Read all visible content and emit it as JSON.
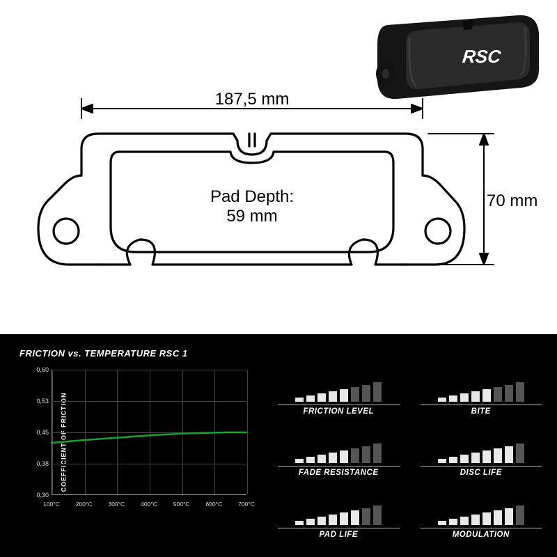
{
  "pad3d": {
    "logo_text": "RSC",
    "body_color": "#1b1b1b",
    "face_color": "#2f2f2f",
    "highlight": "#444444"
  },
  "drawing": {
    "width_label": "187,5 mm",
    "height_label": "70 mm",
    "depth_label_line1": "Pad Depth:",
    "depth_label_line2": "59 mm",
    "stroke_color": "#000000",
    "text_color": "#000000",
    "font_size_pt": 22
  },
  "chart": {
    "title": "FRICTION vs. TEMPERATURE RSC 1",
    "ylabel": "COEFFICIENT OF FRICTION",
    "ylim": [
      0.3,
      0.6
    ],
    "yticks": [
      "0,30",
      "0,38",
      "0,45",
      "0,53",
      "0,60"
    ],
    "xticks": [
      "100°C",
      "200°C",
      "300°C",
      "400°C",
      "500°C",
      "600°C",
      "700°C"
    ],
    "line_color": "#17a52d",
    "line_width": 2.5,
    "grid_color": "#444444",
    "axis_color": "#888888",
    "background": "#000000",
    "line_points": [
      [
        0,
        0.425
      ],
      [
        50,
        0.432
      ],
      [
        100,
        0.438
      ],
      [
        150,
        0.444
      ],
      [
        200,
        0.448
      ],
      [
        250,
        0.45
      ],
      [
        280,
        0.45
      ]
    ]
  },
  "meters": {
    "bar_count": 8,
    "bar_heights": [
      6,
      9,
      12,
      15,
      18,
      21,
      24,
      28
    ],
    "on_color": "#e8e8e8",
    "off_color": "#555555",
    "items": [
      {
        "label": "FRICTION LEVEL",
        "value": 5
      },
      {
        "label": "BITE",
        "value": 5
      },
      {
        "label": "FADE RESISTANCE",
        "value": 5
      },
      {
        "label": "DISC LIFE",
        "value": 7
      },
      {
        "label": "PAD LIFE",
        "value": 6
      },
      {
        "label": "MODULATION",
        "value": 7
      }
    ]
  }
}
